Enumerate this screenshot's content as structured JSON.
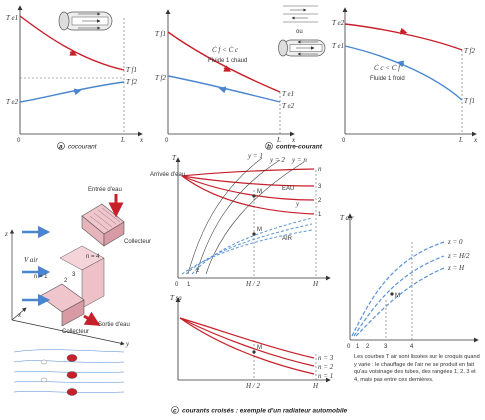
{
  "colors": {
    "red": "#c8202a",
    "blue": "#4a86d0",
    "dashed_blue": "#5b93d6",
    "pink": "#e8b4bc",
    "axis": "#333333"
  },
  "panel_a": {
    "caption_letter": "a",
    "caption": "cocourant",
    "labels": {
      "te1": "T e1",
      "tf1": "T f1",
      "tf2": "T f2",
      "te2": "T e2",
      "origin": "0",
      "L": "L",
      "x": "x"
    }
  },
  "panel_b": {
    "caption_letter": "b",
    "caption": "contre-courant",
    "ou": "ou",
    "sub1": {
      "labels": {
        "tf1": "T f1",
        "tf2": "T f2",
        "te1": "T e1",
        "te2": "T e2",
        "origin": "0",
        "L": "L",
        "x": "x"
      },
      "ratio": "Ċ f < Ċ c",
      "fluid": "Fluide 1 chaud"
    },
    "sub2": {
      "labels": {
        "te2": "T e2",
        "te1": "T e1",
        "tf2": "T f2",
        "tf1": "T f1",
        "origin": "0",
        "L": "L",
        "x": "x"
      },
      "ratio": "Ċ c < Ċ f",
      "fluid": "Fluide 1 froid"
    }
  },
  "panel_c": {
    "caption_letter": "c",
    "caption": "courants croisés : exemple d'un radiateur automobile",
    "sketch": {
      "entree": "Entrée d'eau",
      "collecteur_top": "Collecteur",
      "collecteur_bot": "Collecteur",
      "sortie": "Sortie d'eau",
      "vair": "V air",
      "n1": "n = 1",
      "n2": "2",
      "n3": "3",
      "n4": "n = 4",
      "z": "z",
      "x": "x",
      "y": "y"
    },
    "temp_chart": {
      "T": "T",
      "arrivee": "Arrivée d'eau",
      "y1": "y = 1",
      "y2": "y = 2",
      "yn": "y = n",
      "n": "n",
      "r3": "3",
      "r2": "2",
      "r1": "1",
      "y": "y",
      "eau": "EAU",
      "air": "AIR",
      "M": "M",
      "origin": "0",
      "t1": "1",
      "t2": "2",
      "H2": "H / 2",
      "H": "H"
    },
    "tsa_chart": {
      "Tsa": "T sa",
      "M": "M",
      "n3": "n = 3",
      "n2": "n = 2",
      "n1": "n = 1",
      "H2": "H / 2",
      "H": "H"
    },
    "tair_chart": {
      "Tair": "T air",
      "z0": "z = 0",
      "zH2": "z = H/2",
      "zH": "z = H",
      "M": "M",
      "origin": "0",
      "t1": "1",
      "t2": "2",
      "t3": "3",
      "t4": "4"
    },
    "note": "Les courbes T air sont lissées sur le croquis quand y varie : le chauffage de l'air ne se produit en fait qu'au voisinage des tubes, des rangées 1, 2, 3 et 4, mais pas entre ces dernières."
  }
}
